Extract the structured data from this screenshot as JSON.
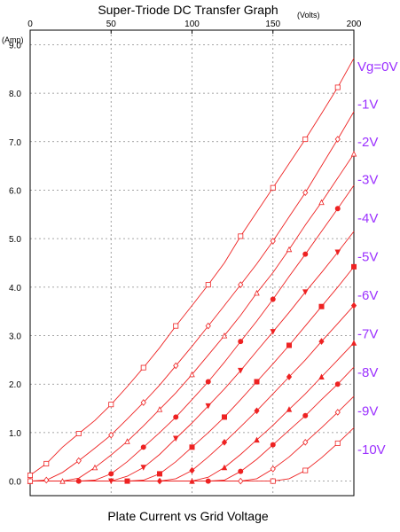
{
  "chart_data": {
    "type": "line",
    "title": "Super-Triode DC Transfer Graph",
    "xlabel": "Plate Current vs Grid Voltage",
    "x_unit": "(Volts)",
    "y_unit": "(Amp)",
    "xlim": [
      0,
      200
    ],
    "ylim": [
      -0.3,
      9.3
    ],
    "x_ticks": [
      "0",
      "50",
      "100",
      "150",
      "200"
    ],
    "y_ticks": [
      "0.0",
      "1.0",
      "2.0",
      "3.0",
      "4.0",
      "5.0",
      "6.0",
      "7.0",
      "8.0",
      "9.0"
    ],
    "grid": true,
    "series": [
      {
        "name": "Vg=0V",
        "color": "#ee2222",
        "marker": "square-open",
        "x": [
          0,
          10,
          20,
          30,
          40,
          50,
          60,
          70,
          80,
          90,
          100,
          110,
          120,
          130,
          140,
          150,
          160,
          170,
          180,
          190,
          200
        ],
        "y": [
          0.12,
          0.36,
          0.7,
          0.98,
          1.25,
          1.58,
          1.95,
          2.34,
          2.75,
          3.2,
          3.62,
          4.05,
          4.5,
          5.05,
          5.55,
          6.05,
          6.55,
          7.05,
          7.58,
          8.12,
          8.72
        ]
      },
      {
        "name": "-1V",
        "color": "#ee2222",
        "marker": "diamond-open",
        "x": [
          0,
          10,
          20,
          30,
          40,
          50,
          60,
          70,
          80,
          90,
          100,
          110,
          120,
          130,
          140,
          150,
          160,
          170,
          180,
          190,
          200
        ],
        "y": [
          0.0,
          0.02,
          0.18,
          0.42,
          0.68,
          0.95,
          1.28,
          1.62,
          1.98,
          2.38,
          2.78,
          3.2,
          3.62,
          4.05,
          4.48,
          4.95,
          5.45,
          5.95,
          6.5,
          7.05,
          7.62
        ]
      },
      {
        "name": "-2V",
        "color": "#ee2222",
        "marker": "triangle-open",
        "x": [
          0,
          20,
          30,
          40,
          50,
          60,
          70,
          80,
          90,
          100,
          110,
          120,
          130,
          140,
          150,
          160,
          170,
          180,
          190,
          200
        ],
        "y": [
          0.0,
          0.0,
          0.06,
          0.28,
          0.54,
          0.82,
          1.14,
          1.48,
          1.82,
          2.2,
          2.6,
          3.0,
          3.42,
          3.88,
          4.3,
          4.78,
          5.28,
          5.75,
          6.25,
          6.75
        ]
      },
      {
        "name": "-3V",
        "color": "#ee2222",
        "marker": "circle-filled",
        "x": [
          0,
          30,
          40,
          50,
          60,
          70,
          80,
          90,
          100,
          110,
          120,
          130,
          140,
          150,
          160,
          170,
          180,
          190,
          200
        ],
        "y": [
          0.0,
          0.0,
          0.02,
          0.15,
          0.4,
          0.7,
          1.0,
          1.32,
          1.68,
          2.05,
          2.45,
          2.88,
          3.3,
          3.75,
          4.22,
          4.68,
          5.15,
          5.62,
          6.1
        ]
      },
      {
        "name": "-4V",
        "color": "#ee2222",
        "marker": "triangle-down-filled",
        "x": [
          0,
          50,
          60,
          70,
          80,
          90,
          100,
          110,
          120,
          130,
          140,
          150,
          160,
          170,
          180,
          190,
          200
        ],
        "y": [
          0.0,
          0.0,
          0.1,
          0.28,
          0.55,
          0.88,
          1.2,
          1.55,
          1.9,
          2.28,
          2.68,
          3.08,
          3.48,
          3.9,
          4.3,
          4.72,
          5.15
        ]
      },
      {
        "name": "-5V",
        "color": "#ee2222",
        "marker": "square-filled",
        "x": [
          0,
          60,
          70,
          80,
          90,
          100,
          110,
          120,
          130,
          140,
          150,
          160,
          170,
          180,
          190,
          200
        ],
        "y": [
          0.0,
          0.0,
          0.02,
          0.15,
          0.4,
          0.7,
          1.0,
          1.32,
          1.68,
          2.05,
          2.42,
          2.8,
          3.2,
          3.6,
          4.0,
          4.42
        ]
      },
      {
        "name": "-6V",
        "color": "#ee2222",
        "marker": "diamond-filled",
        "x": [
          0,
          80,
          90,
          100,
          110,
          120,
          130,
          140,
          150,
          160,
          170,
          180,
          190,
          200
        ],
        "y": [
          0.0,
          0.0,
          0.05,
          0.22,
          0.5,
          0.8,
          1.12,
          1.45,
          1.8,
          2.15,
          2.5,
          2.88,
          3.25,
          3.62
        ]
      },
      {
        "name": "-7V",
        "color": "#ee2222",
        "marker": "triangle-filled",
        "x": [
          0,
          100,
          110,
          120,
          130,
          140,
          150,
          160,
          170,
          180,
          190,
          200
        ],
        "y": [
          0.0,
          0.0,
          0.08,
          0.28,
          0.55,
          0.85,
          1.15,
          1.48,
          1.8,
          2.15,
          2.5,
          2.85
        ]
      },
      {
        "name": "-8V",
        "color": "#ee2222",
        "marker": "circle-filled",
        "x": [
          0,
          110,
          120,
          130,
          140,
          150,
          160,
          170,
          180,
          190,
          200
        ],
        "y": [
          0.0,
          0.0,
          0.02,
          0.2,
          0.45,
          0.75,
          1.05,
          1.35,
          1.68,
          2.0,
          2.35
        ]
      },
      {
        "name": "-9V",
        "color": "#ee2222",
        "marker": "diamond-open",
        "x": [
          0,
          130,
          140,
          150,
          160,
          170,
          180,
          190,
          200
        ],
        "y": [
          0.0,
          0.0,
          0.05,
          0.25,
          0.5,
          0.8,
          1.1,
          1.42,
          1.75
        ]
      },
      {
        "name": "-10V",
        "color": "#ee2222",
        "marker": "square-open",
        "x": [
          0,
          150,
          160,
          170,
          180,
          190,
          200
        ],
        "y": [
          0.0,
          0.0,
          0.05,
          0.22,
          0.48,
          0.78,
          1.1
        ]
      }
    ]
  },
  "vg_labels": [
    "Vg=0V",
    "-1V",
    "-2V",
    "-3V",
    "-4V",
    "-5V",
    "-6V",
    "-7V",
    "-8V",
    "-9V",
    "-10V"
  ],
  "vg_label_color": "#9b30ff"
}
